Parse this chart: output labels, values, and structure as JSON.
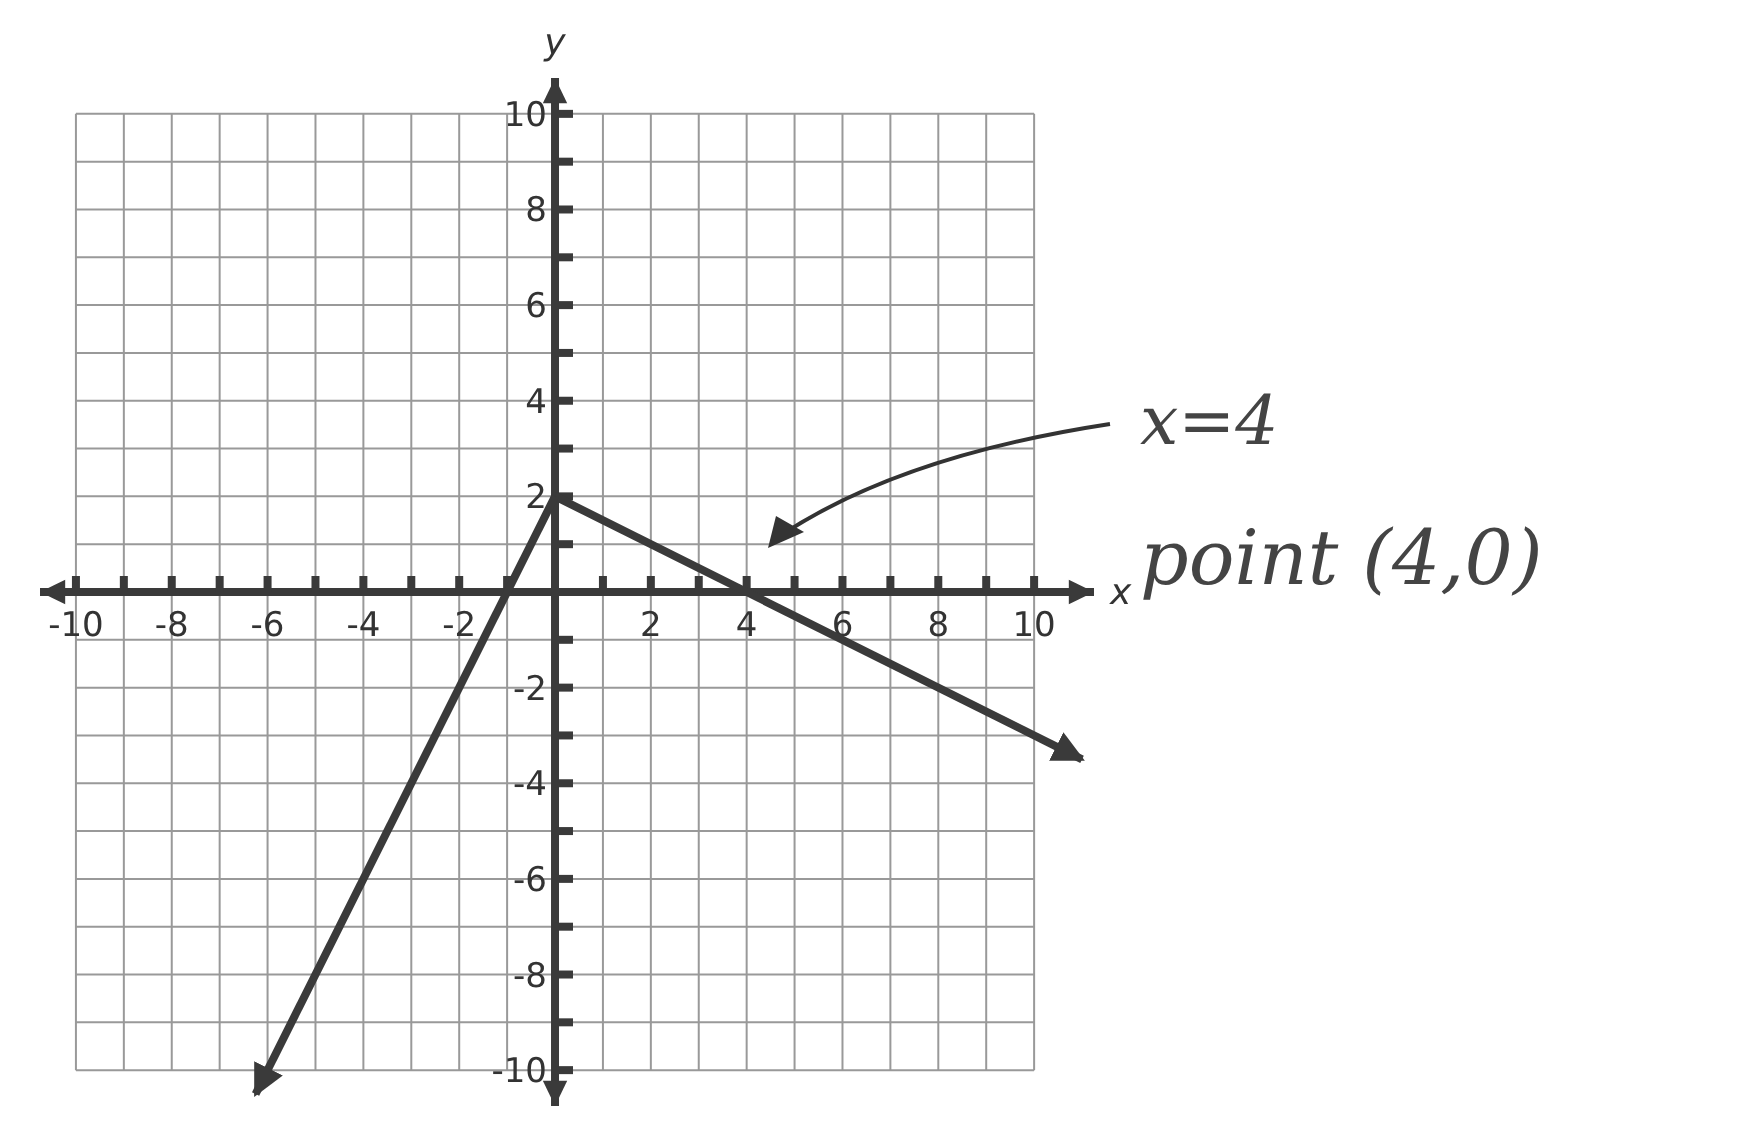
{
  "chart_data": {
    "type": "line",
    "xlabel": "x",
    "ylabel": "y",
    "xlim": [
      -10.75,
      11.25
    ],
    "ylim": [
      -10.75,
      10.75
    ],
    "xticks": [
      -10,
      {
        "value": -9,
        "label": null
      },
      -8,
      {
        "value": -7,
        "label": null
      },
      -6,
      {
        "value": -5,
        "label": null
      },
      -4,
      {
        "value": -3,
        "label": null
      },
      -2,
      {
        "value": -1,
        "label": null
      },
      {
        "value": 0,
        "label": null
      },
      {
        "value": 1,
        "label": null
      },
      2,
      {
        "value": 3,
        "label": null
      },
      4,
      {
        "value": 5,
        "label": null
      },
      6,
      {
        "value": 7,
        "label": null
      },
      8,
      {
        "value": 9,
        "label": null
      },
      10
    ],
    "yticks": [
      -10,
      {
        "value": -9,
        "label": null
      },
      -8,
      {
        "value": -7,
        "label": null
      },
      -6,
      {
        "value": -5,
        "label": null
      },
      -4,
      {
        "value": -3,
        "label": null
      },
      -2,
      {
        "value": -1,
        "label": null
      },
      {
        "value": 0,
        "label": null
      },
      {
        "value": 1,
        "label": null
      },
      2,
      {
        "value": 3,
        "label": null
      },
      4,
      {
        "value": 5,
        "label": null
      },
      6,
      {
        "value": 7,
        "label": null
      },
      8,
      {
        "value": 9,
        "label": null
      },
      10
    ],
    "grid": true,
    "marker": "none",
    "line_style": "solid",
    "series": [
      {
        "color": "#3a3a3a",
        "x": [
          0,
          11
        ],
        "values": [
          2,
          -3.5
        ]
      },
      {
        "color": "#3a3a3a",
        "x": [
          0,
          -6.25
        ],
        "values": [
          2,
          -10.5
        ]
      }
    ],
    "annotations": [
      "x=4",
      "point (4,0)"
    ]
  }
}
